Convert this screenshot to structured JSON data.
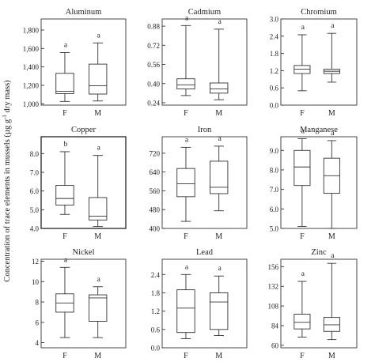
{
  "figure": {
    "ylabel_main": "Concentration of trace elements in mussels (µg g",
    "ylabel_sup": "-1",
    "ylabel_tail": " dry mass)"
  },
  "chart_data": [
    {
      "type": "box",
      "title": "Aluminum",
      "categories": [
        "F",
        "M"
      ],
      "ylim": [
        985,
        1920
      ],
      "yticks": [
        1000,
        1200,
        1400,
        1600,
        1800
      ],
      "ytick_labels": [
        "1,000",
        "1,200",
        "1,400",
        "1,600",
        "1,800"
      ],
      "boxes": [
        {
          "min": 1025,
          "q1": 1110,
          "median": 1135,
          "q3": 1330,
          "max": 1555,
          "letter": "a"
        },
        {
          "min": 1030,
          "q1": 1105,
          "median": 1195,
          "q3": 1430,
          "max": 1660,
          "letter": "a"
        }
      ]
    },
    {
      "type": "box",
      "title": "Cadmium",
      "categories": [
        "F",
        "M"
      ],
      "ylim": [
        0.22,
        0.94
      ],
      "yticks": [
        0.24,
        0.4,
        0.56,
        0.72,
        0.88
      ],
      "ytick_labels": [
        "0.24",
        "0.40",
        "0.56",
        "0.72",
        "0.88"
      ],
      "boxes": [
        {
          "min": 0.3,
          "q1": 0.355,
          "median": 0.39,
          "q3": 0.44,
          "max": 0.885,
          "letter": "a"
        },
        {
          "min": 0.265,
          "q1": 0.32,
          "median": 0.355,
          "q3": 0.405,
          "max": 0.855,
          "letter": "a"
        }
      ]
    },
    {
      "type": "box",
      "title": "Chromium",
      "categories": [
        "F",
        "M"
      ],
      "ylim": [
        0,
        3.0
      ],
      "yticks": [
        0.0,
        0.6,
        1.2,
        1.8,
        2.4,
        3.0
      ],
      "ytick_labels": [
        "0.0",
        "0.6",
        "1.2",
        "1.8",
        "2.4",
        "3.0"
      ],
      "boxes": [
        {
          "min": 0.5,
          "q1": 1.1,
          "median": 1.25,
          "q3": 1.38,
          "max": 2.45,
          "letter": "a"
        },
        {
          "min": 0.8,
          "q1": 1.1,
          "median": 1.18,
          "q3": 1.25,
          "max": 2.5,
          "letter": "a"
        }
      ]
    },
    {
      "type": "box",
      "title": "Copper",
      "categories": [
        "F",
        "M"
      ],
      "ylim": [
        4.0,
        8.9
      ],
      "yticks": [
        4.0,
        5.0,
        6.0,
        7.0,
        8.0
      ],
      "ytick_labels": [
        "4.0",
        "5.0",
        "6.0",
        "7.0",
        "8.0"
      ],
      "boxes": [
        {
          "min": 4.75,
          "q1": 5.25,
          "median": 5.6,
          "q3": 6.3,
          "max": 8.1,
          "letter": "b"
        },
        {
          "min": 4.1,
          "q1": 4.45,
          "median": 4.65,
          "q3": 5.65,
          "max": 7.9,
          "letter": "a"
        }
      ]
    },
    {
      "type": "box",
      "title": "Iron",
      "categories": [
        "F",
        "M"
      ],
      "ylim": [
        400,
        790
      ],
      "yticks": [
        400,
        480,
        560,
        640,
        720
      ],
      "ytick_labels": [
        "400",
        "480",
        "560",
        "640",
        "720"
      ],
      "boxes": [
        {
          "min": 430,
          "q1": 535,
          "median": 590,
          "q3": 655,
          "max": 745,
          "letter": "a"
        },
        {
          "min": 475,
          "q1": 548,
          "median": 575,
          "q3": 686,
          "max": 750,
          "letter": "a"
        }
      ]
    },
    {
      "type": "box",
      "title": "Manganese",
      "categories": [
        "F",
        "M"
      ],
      "ylim": [
        5.0,
        9.7
      ],
      "yticks": [
        5.0,
        6.0,
        7.0,
        8.0,
        9.0
      ],
      "ytick_labels": [
        "5.0",
        "6.0",
        "7.0",
        "8.0",
        "9.0"
      ],
      "boxes": [
        {
          "min": 5.1,
          "q1": 7.2,
          "median": 8.15,
          "q3": 9.0,
          "max": 9.6,
          "letter": "a"
        },
        {
          "min": 5.0,
          "q1": 6.8,
          "median": 7.7,
          "q3": 8.6,
          "max": 9.5,
          "letter": "a"
        }
      ]
    },
    {
      "type": "box",
      "title": "Nickel",
      "categories": [
        "F",
        "M"
      ],
      "ylim": [
        3.5,
        12.2
      ],
      "yticks": [
        4,
        6,
        8,
        10,
        12
      ],
      "ytick_labels": [
        "4",
        "6",
        "8",
        "10",
        "12"
      ],
      "boxes": [
        {
          "min": 4.5,
          "q1": 7.0,
          "median": 7.9,
          "q3": 8.8,
          "max": 11.4,
          "letter": "a"
        },
        {
          "min": 4.5,
          "q1": 6.1,
          "median": 8.4,
          "q3": 8.7,
          "max": 9.5,
          "letter": "a"
        }
      ]
    },
    {
      "type": "box",
      "title": "Lead",
      "categories": [
        "F",
        "M"
      ],
      "ylim": [
        0,
        2.9
      ],
      "yticks": [
        0.0,
        0.6,
        1.2,
        1.8,
        2.4
      ],
      "ytick_labels": [
        "0.0",
        "0.6",
        "1.2",
        "1.8",
        "2.4"
      ],
      "boxes": [
        {
          "min": 0.3,
          "q1": 0.5,
          "median": 1.3,
          "q3": 1.9,
          "max": 2.4,
          "letter": "a"
        },
        {
          "min": 0.4,
          "q1": 0.6,
          "median": 1.5,
          "q3": 1.8,
          "max": 2.35,
          "letter": "a"
        }
      ]
    },
    {
      "type": "box",
      "title": "Zinc",
      "categories": [
        "F",
        "M"
      ],
      "ylim": [
        57,
        165
      ],
      "yticks": [
        60,
        84,
        108,
        132,
        156
      ],
      "ytick_labels": [
        "60",
        "84",
        "108",
        "132",
        "156"
      ],
      "boxes": [
        {
          "min": 70,
          "q1": 80,
          "median": 88,
          "q3": 98,
          "max": 138,
          "letter": "a"
        },
        {
          "min": 67,
          "q1": 77,
          "median": 85,
          "q3": 94,
          "max": 160,
          "letter": "a"
        }
      ]
    }
  ]
}
